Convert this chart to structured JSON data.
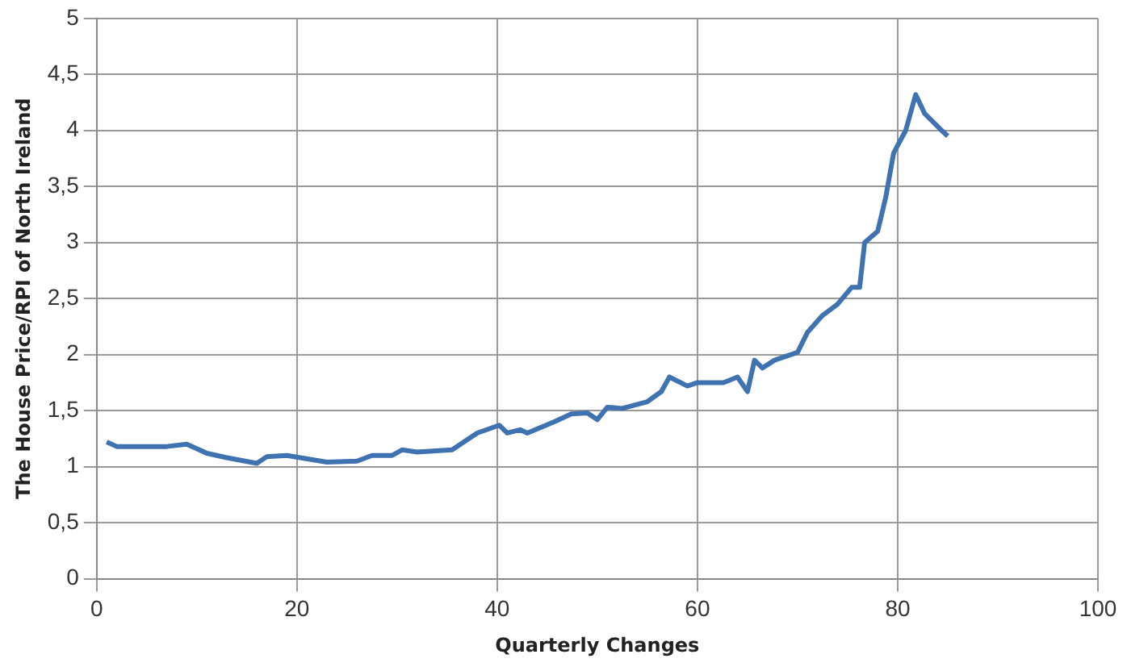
{
  "chart_data": {
    "type": "line",
    "xlabel": "Quarterly Changes",
    "ylabel": "The House Price/RPI of North Ireland",
    "x": [
      1,
      2,
      7,
      9,
      11,
      13,
      16,
      17,
      19,
      23,
      26,
      27.5,
      29.5,
      30.5,
      32,
      35.5,
      38,
      40.2,
      41,
      42.3,
      43,
      45.7,
      47.4,
      49,
      50,
      51,
      52.5,
      55,
      56.4,
      57.2,
      59,
      60,
      62.6,
      64,
      65,
      65.7,
      66.5,
      67.7,
      70,
      71,
      72.5,
      74,
      75.4,
      76.2,
      76.7,
      78,
      78.8,
      79.6,
      80.8,
      81.8,
      82.7,
      84.4,
      85
    ],
    "series": [
      {
        "color": "#3e72b0",
        "values": [
          1.22,
          1.18,
          1.18,
          1.2,
          1.12,
          1.08,
          1.03,
          1.09,
          1.1,
          1.04,
          1.05,
          1.1,
          1.1,
          1.15,
          1.13,
          1.15,
          1.3,
          1.37,
          1.3,
          1.33,
          1.3,
          1.4,
          1.47,
          1.48,
          1.42,
          1.53,
          1.52,
          1.58,
          1.67,
          1.8,
          1.72,
          1.75,
          1.75,
          1.8,
          1.67,
          1.95,
          1.88,
          1.95,
          2.02,
          2.2,
          2.35,
          2.45,
          2.6,
          2.6,
          3.0,
          3.1,
          3.4,
          3.8,
          4.0,
          4.32,
          4.15,
          4.0,
          3.95
        ]
      }
    ],
    "xlim": [
      0,
      100
    ],
    "xticks": [
      0,
      20,
      40,
      60,
      80,
      100
    ],
    "ylim": [
      0,
      5
    ],
    "yticks": [
      0,
      {
        "value": 0.5,
        "label": "0,5"
      },
      1,
      {
        "value": 1.5,
        "label": "1,5"
      },
      2,
      {
        "value": 2.5,
        "label": "2,5"
      },
      3,
      {
        "value": 3.5,
        "label": "3,5"
      },
      4,
      {
        "value": 4.5,
        "label": "4,5"
      },
      5
    ],
    "grid": true,
    "legend": false,
    "marker": "none",
    "line_style": "solid"
  }
}
